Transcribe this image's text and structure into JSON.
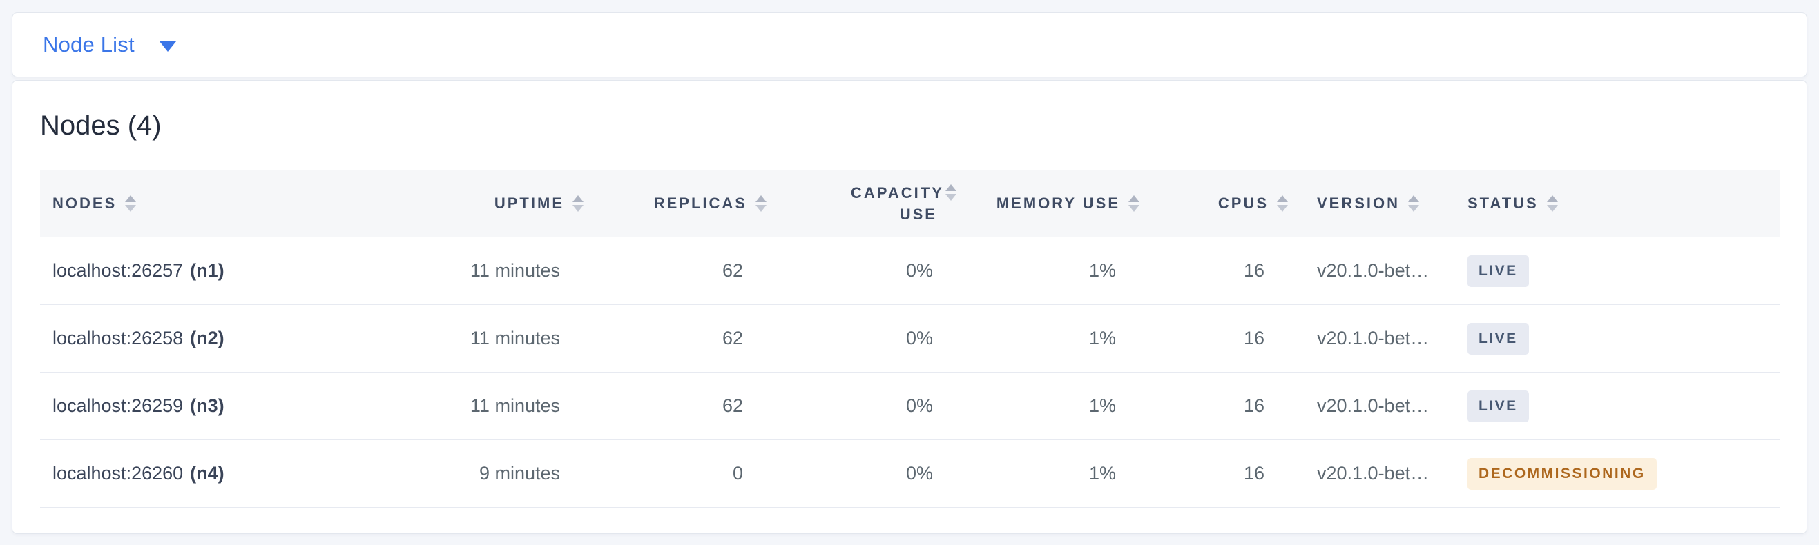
{
  "toolbar": {
    "dropdown_label": "Node List"
  },
  "summary": {
    "title": "Nodes (4)"
  },
  "colors": {
    "accent_blue": "#3b76e8",
    "live_badge_bg": "#e7eaf2",
    "live_badge_text": "#475872",
    "decommissioning_badge_bg": "#fcf0dd",
    "decommissioning_badge_text": "#ad671d",
    "header_text": "#3f4b63",
    "page_background": "#f4f6fa"
  },
  "table": {
    "columns": [
      {
        "key": "nodes",
        "label": "NODES"
      },
      {
        "key": "uptime",
        "label": "UPTIME"
      },
      {
        "key": "replicas",
        "label": "REPLICAS"
      },
      {
        "key": "capacity",
        "label": "CAPACITY USE"
      },
      {
        "key": "memory",
        "label": "MEMORY USE"
      },
      {
        "key": "cpus",
        "label": "CPUS"
      },
      {
        "key": "version",
        "label": "VERSION"
      },
      {
        "key": "status",
        "label": "STATUS"
      }
    ],
    "rows": [
      {
        "address": "localhost:26257",
        "name": "(n1)",
        "uptime": "11 minutes",
        "replicas": "62",
        "capacity": "0%",
        "memory": "1%",
        "cpus": "16",
        "version": "v20.1.0-bet…",
        "status": "LIVE"
      },
      {
        "address": "localhost:26258",
        "name": "(n2)",
        "uptime": "11 minutes",
        "replicas": "62",
        "capacity": "0%",
        "memory": "1%",
        "cpus": "16",
        "version": "v20.1.0-bet…",
        "status": "LIVE"
      },
      {
        "address": "localhost:26259",
        "name": "(n3)",
        "uptime": "11 minutes",
        "replicas": "62",
        "capacity": "0%",
        "memory": "1%",
        "cpus": "16",
        "version": "v20.1.0-bet…",
        "status": "LIVE"
      },
      {
        "address": "localhost:26260",
        "name": "(n4)",
        "uptime": "9 minutes",
        "replicas": "0",
        "capacity": "0%",
        "memory": "1%",
        "cpus": "16",
        "version": "v20.1.0-bet…",
        "status": "DECOMMISSIONING"
      }
    ]
  }
}
